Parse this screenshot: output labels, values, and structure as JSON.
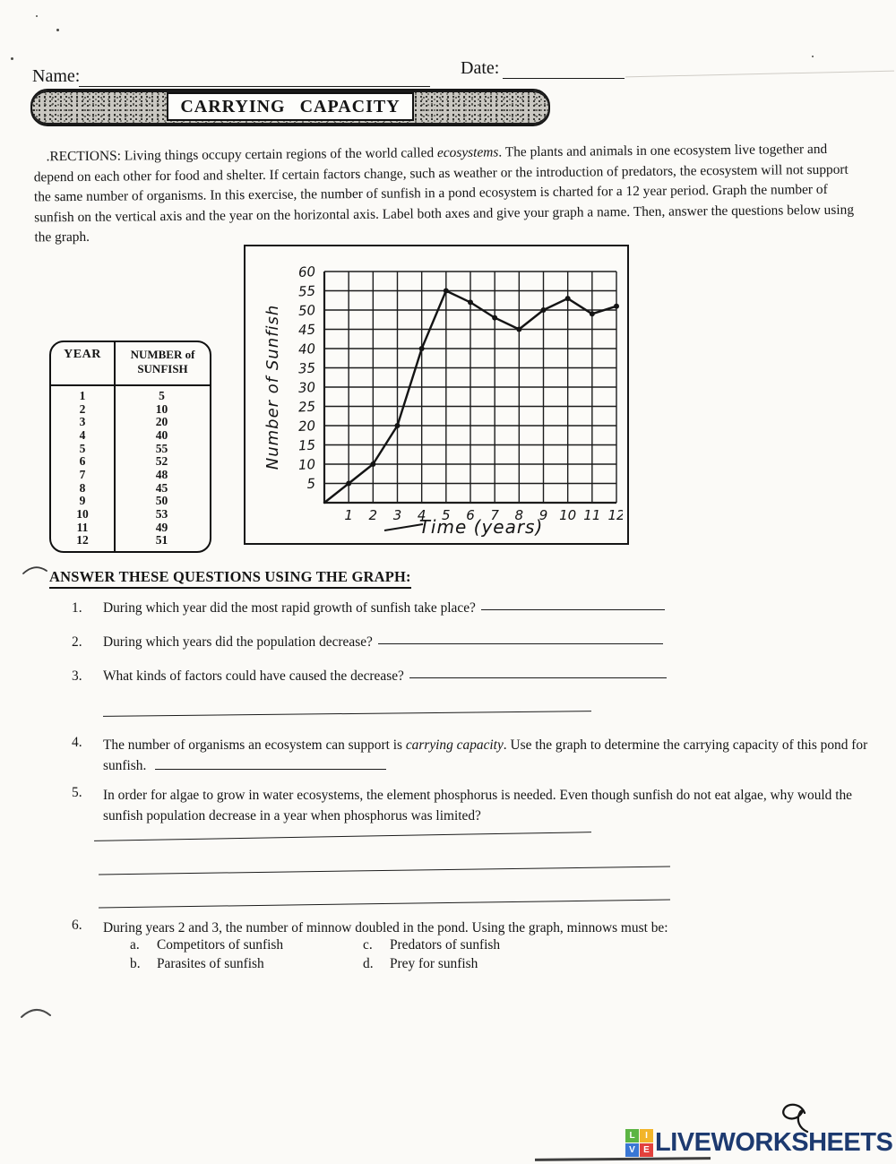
{
  "scan": {
    "name_label": "Name:",
    "date_label": "Date:",
    "banner_title": "CARRYING CAPACITY",
    "directions": {
      "part1": ".RECTIONS: Living things occupy certain regions of the world called ",
      "italic1": "ecosystems",
      "part2": ". The plants and animals in one ecosystem live together and depend on each other for food and shelter. If certain factors change, such as weather or the introduction of predators, the ecosystem will not support the same number of organisms. In this exercise, the number of sunfish in a pond ecosystem is charted for a 12 year period. Graph the number of sunfish on the vertical axis and the year on the horizontal axis. Label both axes and give your graph a name. Then, answer the questions below using the graph."
    }
  },
  "data_table": {
    "header_col1": "YEAR",
    "header_col2_line1": "NUMBER of",
    "header_col2_line2": "SUNFISH",
    "rows": [
      {
        "year": "1",
        "sunfish": "5"
      },
      {
        "year": "2",
        "sunfish": "10"
      },
      {
        "year": "3",
        "sunfish": "20"
      },
      {
        "year": "4",
        "sunfish": "40"
      },
      {
        "year": "5",
        "sunfish": "55"
      },
      {
        "year": "6",
        "sunfish": "52"
      },
      {
        "year": "7",
        "sunfish": "48"
      },
      {
        "year": "8",
        "sunfish": "45"
      },
      {
        "year": "9",
        "sunfish": "50"
      },
      {
        "year": "10",
        "sunfish": "53"
      },
      {
        "year": "11",
        "sunfish": "49"
      },
      {
        "year": "12",
        "sunfish": "51"
      }
    ]
  },
  "chart_data": {
    "type": "line",
    "title": "",
    "xlabel": "Time (years)",
    "ylabel": "Number of Sunfish",
    "x": [
      1,
      2,
      3,
      4,
      5,
      6,
      7,
      8,
      9,
      10,
      11,
      12
    ],
    "values": [
      5,
      10,
      20,
      40,
      55,
      52,
      48,
      45,
      50,
      53,
      49,
      51
    ],
    "x_ticks": [
      "1",
      "2",
      "3",
      "4",
      "5",
      "6",
      "7",
      "8",
      "9",
      "10",
      "11",
      "12"
    ],
    "y_ticks": [
      "60",
      "55",
      "50",
      "45",
      "40",
      "35",
      "30",
      "25",
      "20",
      "15",
      "10",
      "5"
    ],
    "y_tick_values": [
      60,
      55,
      50,
      45,
      40,
      35,
      30,
      25,
      20,
      15,
      10,
      5
    ],
    "xlim": [
      0,
      12
    ],
    "ylim": [
      0,
      60
    ],
    "grid": true,
    "line_starts_at_origin": true,
    "style": "hand-drawn",
    "legend": "none"
  },
  "questions_section": {
    "heading": "ANSWER THESE QUESTIONS USING THE GRAPH:",
    "q1": {
      "num": "1.",
      "text": "During which year did the most rapid growth of sunfish take place?"
    },
    "q2": {
      "num": "2.",
      "text": "During which years did the population decrease?"
    },
    "q3": {
      "num": "3.",
      "text": "What kinds of factors could have caused the decrease?"
    },
    "q4": {
      "num": "4.",
      "part1": "The number of organisms an ecosystem can support is ",
      "italic": "carrying capacity",
      "part2": ".  Use the graph to determine the carrying capacity of this pond for sunfish."
    },
    "q5": {
      "num": "5.",
      "text": "In order for algae to grow in water ecosystems, the element phosphorus is needed. Even though sunfish do not eat algae, why would the sunfish population decrease in a year when phosphorus was limited?"
    },
    "q6": {
      "num": "6.",
      "text": "During years 2 and 3, the number of minnow doubled in the pond.  Using the graph, minnows must be:",
      "options": [
        {
          "letter": "a.",
          "text": "Competitors of sunfish"
        },
        {
          "letter": "b.",
          "text": "Parasites of sunfish"
        },
        {
          "letter": "c.",
          "text": "Predators of sunfish"
        },
        {
          "letter": "d.",
          "text": "Prey for sunfish"
        }
      ]
    }
  },
  "footer": {
    "logo_text": "LIVEWORKSHEETS",
    "logo_text_color": "#1d3a70",
    "logo_squares": [
      {
        "letter": "L",
        "color": "#5cb544"
      },
      {
        "letter": "I",
        "color": "#f2b52a"
      },
      {
        "letter": "V",
        "color": "#3a77d4"
      },
      {
        "letter": "E",
        "color": "#e2413c"
      }
    ]
  }
}
